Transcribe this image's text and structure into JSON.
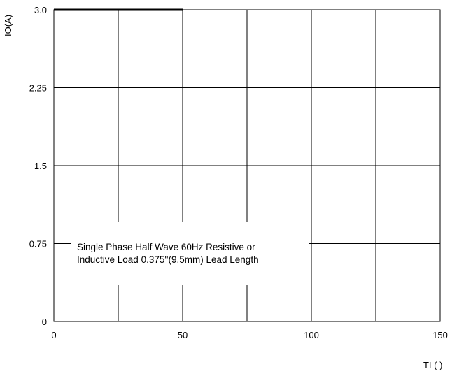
{
  "chart_data": {
    "type": "line",
    "ylabel": "IO(A)",
    "xlabel": "TL(   )",
    "x_ticks": [
      "0",
      "50",
      "100",
      "150"
    ],
    "y_ticks": [
      "0",
      "0.75",
      "1.5",
      "2.25",
      "3.0"
    ],
    "xlim": [
      0,
      150
    ],
    "ylim": [
      0,
      3.0
    ],
    "grid": true,
    "series": [
      {
        "x": [
          0,
          50
        ],
        "y": [
          3.0,
          3.0
        ]
      }
    ],
    "annotation": {
      "line1": "Single Phase Half Wave 60Hz Resistive or",
      "line2": "Inductive Load 0.375''(9.5mm) Lead Length"
    }
  }
}
